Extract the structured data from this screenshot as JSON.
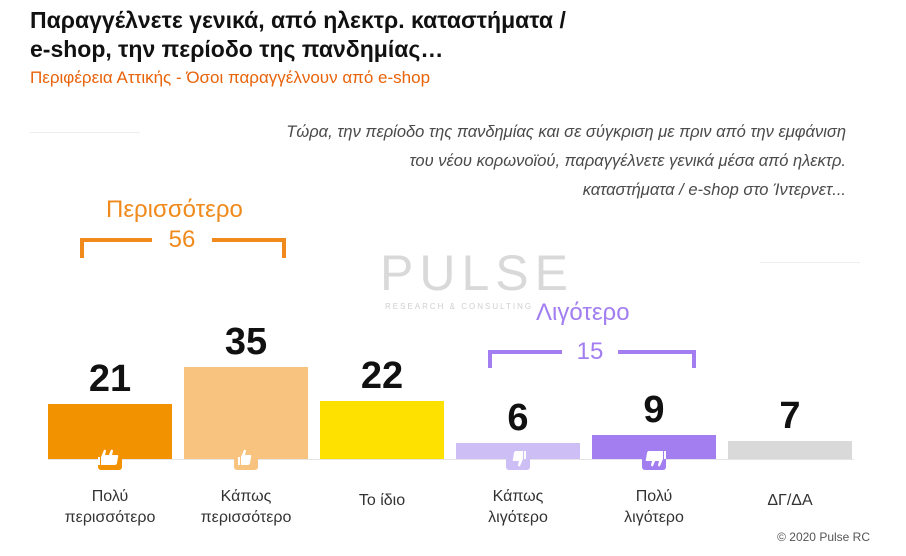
{
  "title_line1": "Παραγγέλνετε γενικά, από ηλεκτρ. καταστήματα /",
  "title_line2": "e-shop, την περίοδο της πανδημίας…",
  "subtitle": "Περιφέρεια Αττικής - Όσοι παραγγέλνουν από e-shop",
  "question": [
    "Τώρα, την περίοδο της πανδημίας και σε σύγκριση με πριν από την εμφάνιση",
    "του νέου κορωνοϊού, παραγγέλνετε γενικά μέσα από ηλεκτρ.",
    "καταστήματα / e-shop στο Ίντερνετ..."
  ],
  "watermark": {
    "brand": "PULSE",
    "tagline": "RESEARCH & CONSULTING"
  },
  "groups": {
    "more": {
      "label": "Περισσότερο",
      "value": "56",
      "color": "#f08a1c"
    },
    "less": {
      "label": "Λιγότερο",
      "value": "15",
      "color": "#a27ef0"
    }
  },
  "colors": {
    "icon_bg": "#ffffff"
  },
  "icons": [
    "thumbs-up-double-icon",
    "thumbs-up-icon",
    "thumbs-down-icon",
    "thumbs-down-double-icon"
  ],
  "copyright": "© 2020 Pulse RC",
  "chart_data": {
    "type": "bar",
    "categories": [
      "Πολύ\nπερισσότερο",
      "Κάπως\nπερισσότερο",
      "Το ίδιο",
      "Κάπως\nλιγότερο",
      "Πολύ\nλιγότερο",
      "ΔΓ/ΔΑ"
    ],
    "values": [
      21,
      35,
      22,
      6,
      9,
      7
    ],
    "value_labels": [
      "21",
      "35",
      "22",
      "6",
      "9",
      "7"
    ],
    "colors": [
      "#f39200",
      "#f8c37f",
      "#ffe100",
      "#cdbff5",
      "#a27ef0",
      "#d9d9d9"
    ],
    "ylim": [
      0,
      35
    ]
  }
}
